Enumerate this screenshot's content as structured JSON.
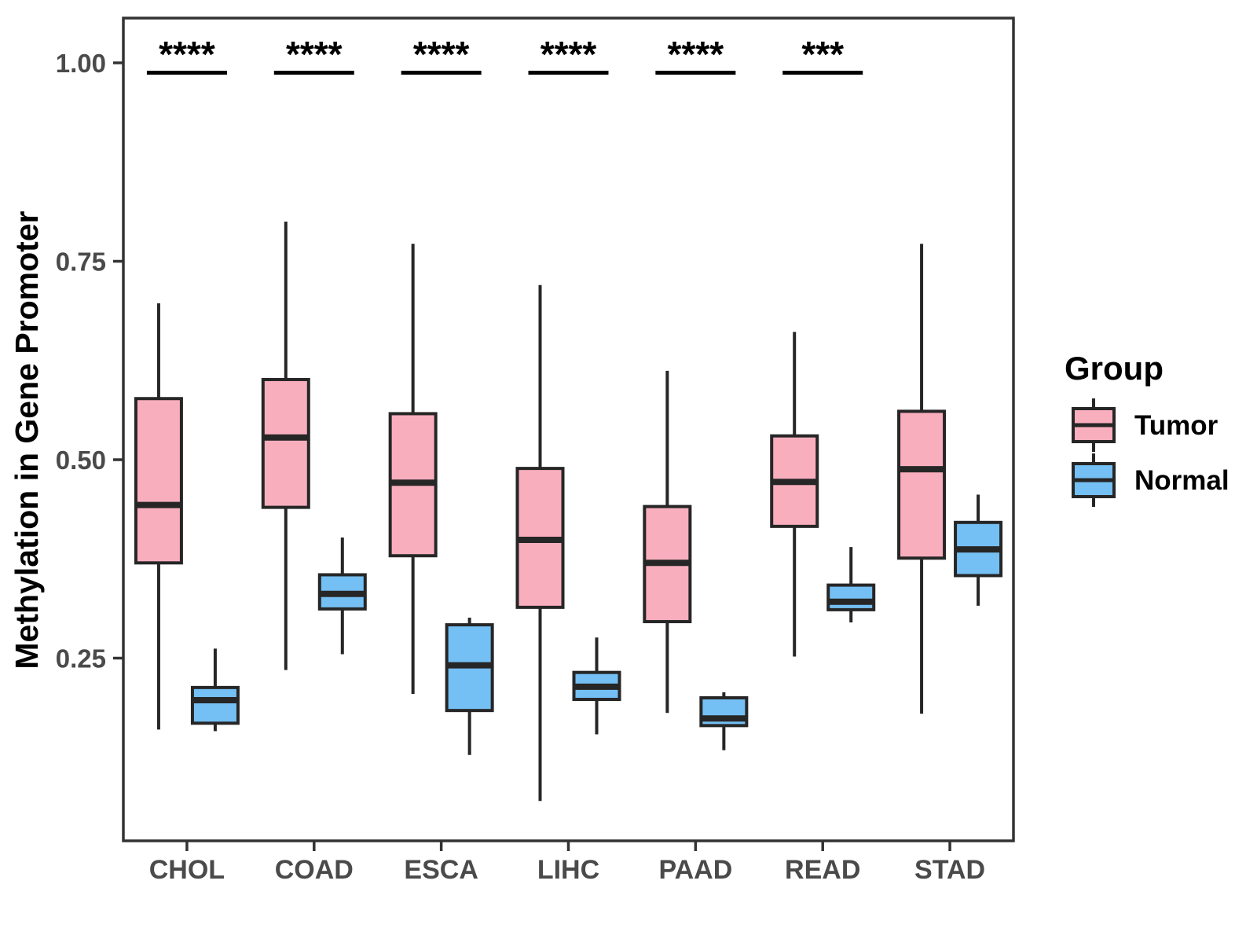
{
  "chart_data": {
    "type": "boxplot",
    "title": "",
    "xlabel": "",
    "ylabel": "Methylation in Gene Promoter",
    "categories": [
      "CHOL",
      "COAD",
      "ESCA",
      "LIHC",
      "PAAD",
      "READ",
      "STAD"
    ],
    "y_ticks": [
      1.0,
      0.75,
      0.5,
      0.25
    ],
    "y_tick_labels": [
      "1.00",
      "0.75",
      "0.50",
      "0.25"
    ],
    "ylim": [
      0.02,
      1.06
    ],
    "grid": "off",
    "legend": {
      "title": "Group",
      "position": "right",
      "entries": [
        {
          "label": "Tumor",
          "color": "#F9AEBE"
        },
        {
          "label": "Normal",
          "color": "#74BFF3"
        }
      ]
    },
    "significance": [
      "****",
      "****",
      "****",
      "****",
      "****",
      "***",
      ""
    ],
    "series": [
      {
        "name": "Tumor",
        "color": "#F9AEBE",
        "boxes": [
          {
            "category": "CHOL",
            "whisker_low": 0.16,
            "q1": 0.37,
            "median": 0.443,
            "q3": 0.577,
            "whisker_high": 0.697
          },
          {
            "category": "COAD",
            "whisker_low": 0.235,
            "q1": 0.44,
            "median": 0.528,
            "q3": 0.601,
            "whisker_high": 0.8
          },
          {
            "category": "ESCA",
            "whisker_low": 0.205,
            "q1": 0.379,
            "median": 0.471,
            "q3": 0.558,
            "whisker_high": 0.772
          },
          {
            "category": "LIHC",
            "whisker_low": 0.07,
            "q1": 0.314,
            "median": 0.399,
            "q3": 0.489,
            "whisker_high": 0.72
          },
          {
            "category": "PAAD",
            "whisker_low": 0.181,
            "q1": 0.296,
            "median": 0.37,
            "q3": 0.441,
            "whisker_high": 0.612
          },
          {
            "category": "READ",
            "whisker_low": 0.252,
            "q1": 0.416,
            "median": 0.472,
            "q3": 0.53,
            "whisker_high": 0.661
          },
          {
            "category": "STAD",
            "whisker_low": 0.18,
            "q1": 0.376,
            "median": 0.488,
            "q3": 0.561,
            "whisker_high": 0.772
          }
        ]
      },
      {
        "name": "Normal",
        "color": "#74BFF3",
        "boxes": [
          {
            "category": "CHOL",
            "whisker_low": 0.158,
            "q1": 0.168,
            "median": 0.197,
            "q3": 0.213,
            "whisker_high": 0.262
          },
          {
            "category": "COAD",
            "whisker_low": 0.255,
            "q1": 0.312,
            "median": 0.331,
            "q3": 0.355,
            "whisker_high": 0.402
          },
          {
            "category": "ESCA",
            "whisker_low": 0.128,
            "q1": 0.184,
            "median": 0.241,
            "q3": 0.292,
            "whisker_high": 0.301
          },
          {
            "category": "LIHC",
            "whisker_low": 0.154,
            "q1": 0.198,
            "median": 0.214,
            "q3": 0.232,
            "whisker_high": 0.276
          },
          {
            "category": "PAAD",
            "whisker_low": 0.134,
            "q1": 0.165,
            "median": 0.174,
            "q3": 0.2,
            "whisker_high": 0.207
          },
          {
            "category": "READ",
            "whisker_low": 0.295,
            "q1": 0.311,
            "median": 0.321,
            "q3": 0.342,
            "whisker_high": 0.39
          },
          {
            "category": "STAD",
            "whisker_low": 0.316,
            "q1": 0.354,
            "median": 0.387,
            "q3": 0.421,
            "whisker_high": 0.456
          }
        ]
      }
    ],
    "style": {
      "panel_border_color": "#333333",
      "box_border_color": "#262626",
      "median_color": "#262626",
      "whisker_color": "#262626",
      "tick_label_color": "#4a4a4a",
      "annotation_color": "#000000",
      "background": "#ffffff"
    }
  }
}
